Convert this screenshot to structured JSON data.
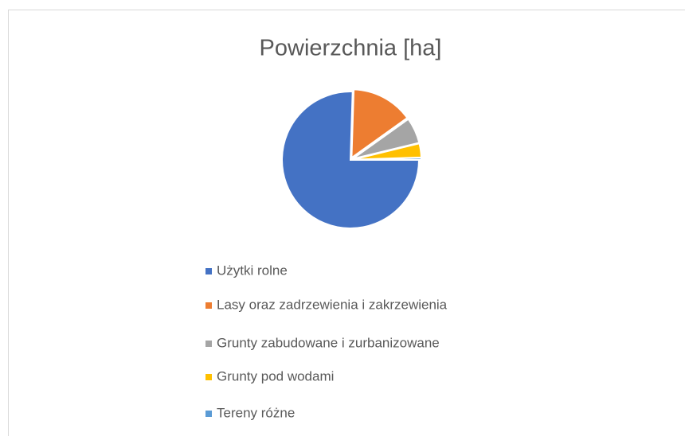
{
  "chart_data": {
    "type": "pie",
    "title": "Powierzchnia [ha]",
    "categories": [
      "Użytki rolne",
      "Lasy oraz zadrzewienia i zakrzewienia",
      "Grunty zabudowane i zurbanizowane",
      "Grunty pod wodami",
      "Tereny różne"
    ],
    "values": [
      75.5,
      14.6,
      6.1,
      3.3,
      0.5
    ],
    "colors": [
      "#4472c4",
      "#ed7d31",
      "#a5a5a5",
      "#ffc000",
      "#5b9bd5"
    ],
    "legend": "bottom"
  }
}
